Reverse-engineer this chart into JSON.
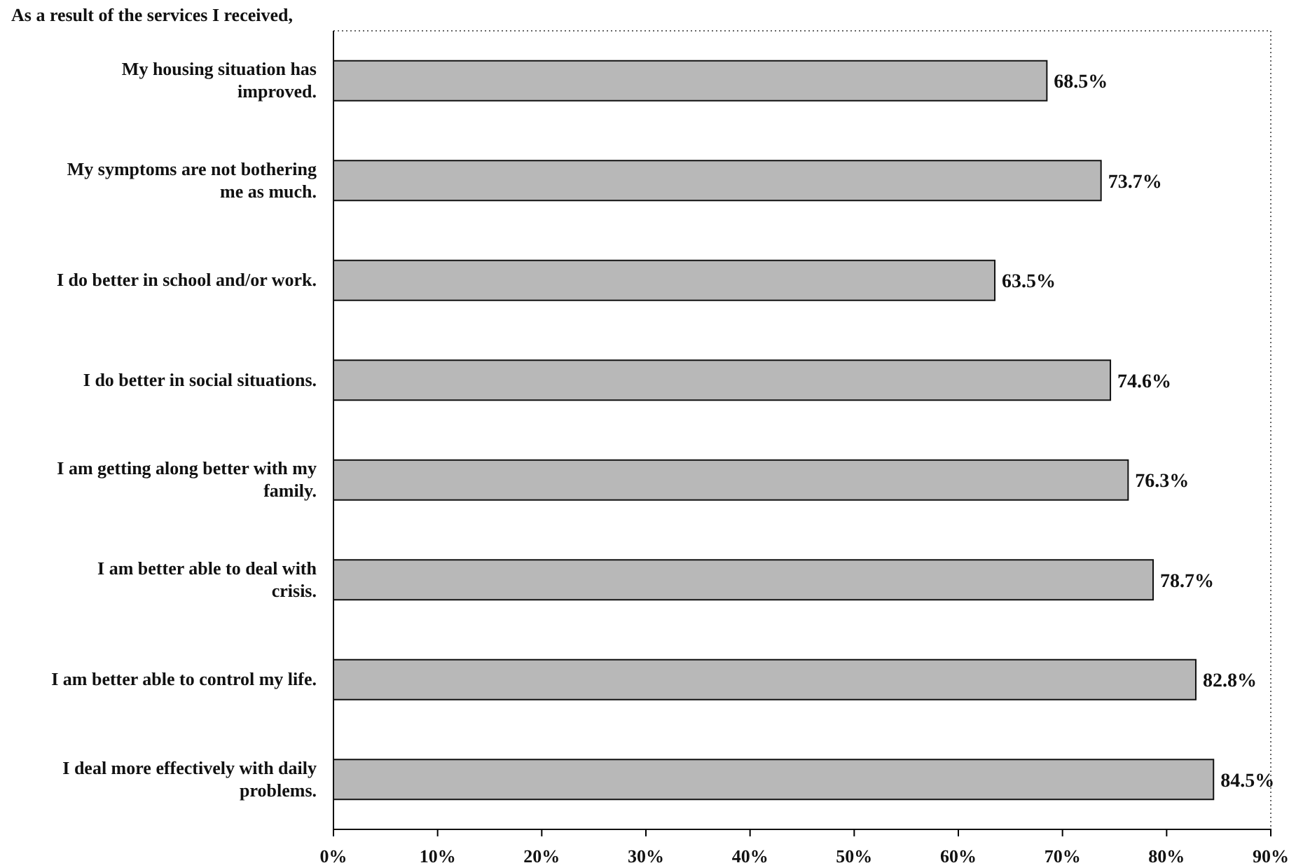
{
  "chart_data": {
    "type": "bar",
    "orientation": "horizontal",
    "title": "As a result of the services I received,",
    "categories": [
      "My housing situation has improved.",
      "My symptoms are not bothering me as much.",
      "I do better in school and/or work.",
      "I do better in social situations.",
      "I am getting along better with my family.",
      "I am better able to deal with crisis.",
      "I am better able to control my life.",
      "I deal more effectively with daily problems."
    ],
    "values": [
      68.5,
      73.7,
      63.5,
      74.6,
      76.3,
      78.7,
      82.8,
      84.5
    ],
    "value_labels": [
      "68.5%",
      "73.7%",
      "63.5%",
      "74.6%",
      "76.3%",
      "78.7%",
      "82.8%",
      "84.5%"
    ],
    "color": "#b8b8b8",
    "xlim": [
      0,
      90
    ],
    "xticks": [
      {
        "value": 0,
        "label": "0%"
      },
      {
        "value": 10,
        "label": "10%"
      },
      {
        "value": 20,
        "label": "20%"
      },
      {
        "value": 30,
        "label": "30%"
      },
      {
        "value": 40,
        "label": "40%"
      },
      {
        "value": 50,
        "label": "50%"
      },
      {
        "value": 60,
        "label": "60%"
      },
      {
        "value": 70,
        "label": "70%"
      },
      {
        "value": 80,
        "label": "80%"
      },
      {
        "value": 90,
        "label": "90%"
      }
    ],
    "grid": false
  }
}
